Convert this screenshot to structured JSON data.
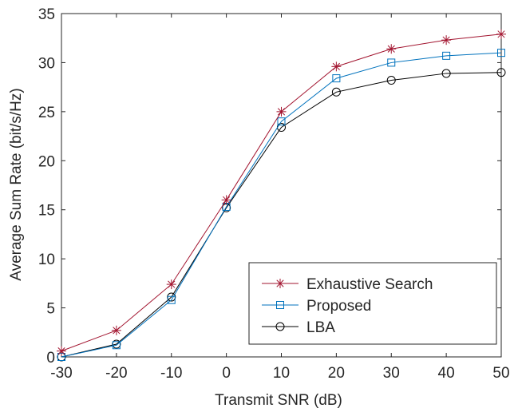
{
  "chart_data": {
    "type": "line",
    "title": "",
    "xlabel": "Transmit SNR (dB)",
    "ylabel": "Average Sum Rate (bit/s/Hz)",
    "xlim": [
      -30,
      50
    ],
    "ylim": [
      0,
      35
    ],
    "xticks": [
      -30,
      -20,
      -10,
      0,
      10,
      20,
      30,
      40,
      50
    ],
    "yticks": [
      0,
      5,
      10,
      15,
      20,
      25,
      30,
      35
    ],
    "grid": false,
    "legend_position": "bottom-right",
    "x": [
      -30,
      -20,
      -10,
      0,
      10,
      20,
      30,
      40,
      50
    ],
    "series": [
      {
        "name": "Exhaustive Search",
        "color": "#a2142f",
        "marker": "asterisk",
        "values": [
          0.6,
          2.7,
          7.4,
          16.0,
          25.0,
          29.6,
          31.4,
          32.3,
          32.9
        ]
      },
      {
        "name": "Proposed",
        "color": "#0072bd",
        "marker": "square",
        "values": [
          0.0,
          1.2,
          5.8,
          15.3,
          24.0,
          28.4,
          30.0,
          30.7,
          31.0
        ]
      },
      {
        "name": "LBA",
        "color": "#000000",
        "marker": "circle",
        "values": [
          0.0,
          1.3,
          6.1,
          15.2,
          23.4,
          27.0,
          28.2,
          28.9,
          29.0
        ]
      }
    ]
  }
}
